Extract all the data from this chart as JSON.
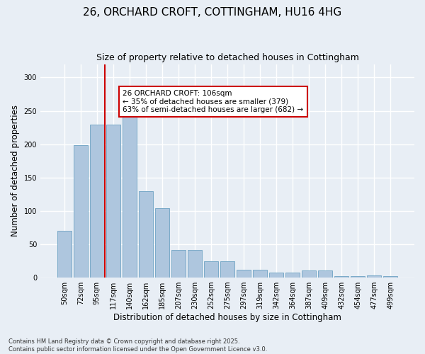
{
  "title_line1": "26, ORCHARD CROFT, COTTINGHAM, HU16 4HG",
  "title_line2": "Size of property relative to detached houses in Cottingham",
  "xlabel": "Distribution of detached houses by size in Cottingham",
  "ylabel": "Number of detached properties",
  "categories": [
    "50sqm",
    "72sqm",
    "95sqm",
    "117sqm",
    "140sqm",
    "162sqm",
    "185sqm",
    "207sqm",
    "230sqm",
    "252sqm",
    "275sqm",
    "297sqm",
    "319sqm",
    "342sqm",
    "364sqm",
    "387sqm",
    "409sqm",
    "432sqm",
    "454sqm",
    "477sqm",
    "499sqm"
  ],
  "values": [
    70,
    199,
    229,
    229,
    245,
    130,
    104,
    42,
    42,
    25,
    25,
    12,
    12,
    8,
    8,
    11,
    11,
    2,
    2,
    3,
    2
  ],
  "bar_color": "#aec6de",
  "bar_edge_color": "#7aaac8",
  "annotation_text": "26 ORCHARD CROFT: 106sqm\n← 35% of detached houses are smaller (379)\n63% of semi-detached houses are larger (682) →",
  "annotation_box_color": "#ffffff",
  "annotation_box_edge_color": "#cc0000",
  "vline_x": 2.5,
  "ylim": [
    0,
    320
  ],
  "yticks": [
    0,
    50,
    100,
    150,
    200,
    250,
    300
  ],
  "bg_color": "#e8eef5",
  "grid_color": "#ffffff",
  "footnote": "Contains HM Land Registry data © Crown copyright and database right 2025.\nContains public sector information licensed under the Open Government Licence v3.0."
}
